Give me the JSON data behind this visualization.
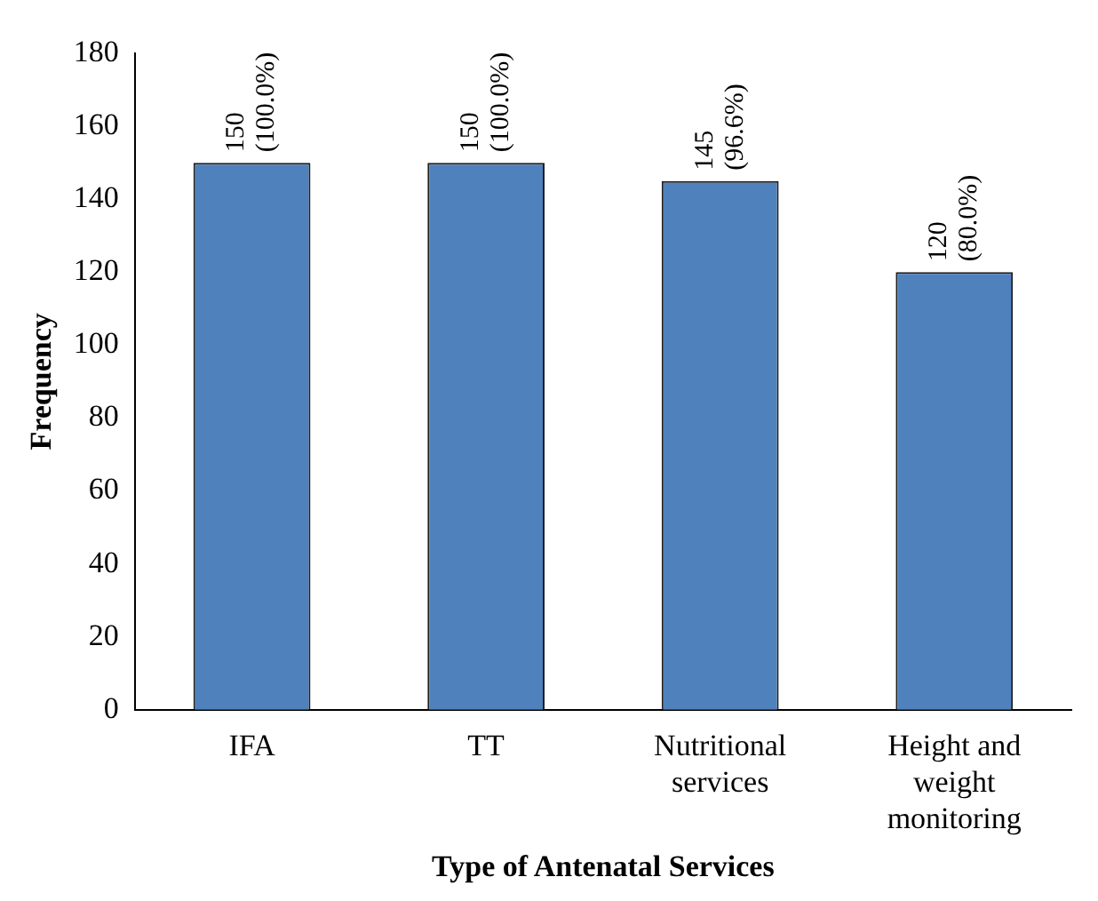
{
  "chart_data": {
    "type": "bar",
    "xlabel": "Type of Antenatal Services",
    "ylabel": "Frequency",
    "categories": [
      "IFA",
      "TT",
      "Nutritional services",
      "Height and weight monitoring"
    ],
    "values": [
      150,
      150,
      145,
      120
    ],
    "color": "#4f81bd",
    "value_labels": [
      "150 (100.0%)",
      "150 (100.0%)",
      "145 (96.6%)",
      "120 (80.0%)"
    ],
    "ylim": [
      0,
      180
    ],
    "yticks": [
      0,
      20,
      40,
      60,
      80,
      100,
      120,
      140,
      160,
      180
    ],
    "grid": false,
    "legend": false
  }
}
